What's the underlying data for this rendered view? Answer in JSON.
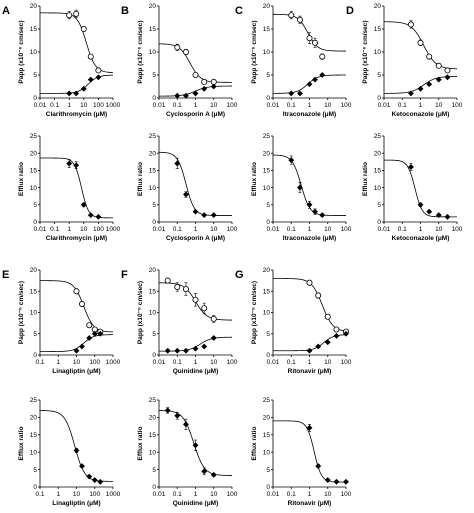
{
  "chart_data": [
    {
      "type": "scatter",
      "panel_label": "A",
      "drug": "Clarithromycin",
      "xlabel": "Clarithromycin (μM)",
      "ylabel": "Papp (x10⁻⁶ cm/sec)",
      "xscale": "log",
      "xlim": [
        0.01,
        1000
      ],
      "ylim": [
        0,
        20
      ],
      "x_ticks": [
        "0.01",
        "0.1",
        "1",
        "10",
        "100",
        "1000"
      ],
      "y_ticks": [
        "0",
        "5",
        "10",
        "15",
        "20"
      ],
      "series": [
        {
          "marker": "open",
          "x": [
            1,
            3,
            10,
            30,
            100
          ],
          "y": [
            18,
            18.3,
            15,
            9,
            6
          ],
          "err": [
            0.8,
            0.8,
            0.5,
            0.5,
            0.4
          ]
        },
        {
          "marker": "filled",
          "x": [
            1,
            3,
            10,
            30,
            100
          ],
          "y": [
            1,
            1,
            2,
            4,
            4.5
          ],
          "err": [
            0,
            0,
            0,
            0,
            0
          ]
        }
      ],
      "fits": [
        {
          "top": 18.5,
          "bottom": 5.5,
          "ic50": 15,
          "hill": 1.4
        },
        {
          "top": 1,
          "bottom": 5,
          "ic50": 20,
          "hill": 1.3
        }
      ]
    },
    {
      "type": "scatter",
      "panel_label": "B",
      "drug": "Cyclosporin A",
      "xlabel": "Cyclosporin A (μM)",
      "ylabel": "Papp (x10⁻⁶ cm/sec)",
      "xscale": "log",
      "xlim": [
        0.01,
        100
      ],
      "ylim": [
        0,
        20
      ],
      "x_ticks": [
        "0.01",
        "0.1",
        "1",
        "10",
        "100"
      ],
      "y_ticks": [
        "0",
        "5",
        "10",
        "15",
        "20"
      ],
      "series": [
        {
          "marker": "open",
          "x": [
            0.1,
            0.3,
            1,
            3,
            10
          ],
          "y": [
            11,
            10,
            5,
            3.5,
            3.5
          ],
          "err": [
            0.7,
            0.6,
            0.4,
            0.3,
            0.3
          ]
        },
        {
          "marker": "filled",
          "x": [
            0.1,
            0.3,
            1,
            3,
            10
          ],
          "y": [
            0.5,
            0.5,
            1,
            2,
            2.5
          ],
          "err": [
            0,
            0,
            0,
            0,
            0
          ]
        }
      ],
      "fits": [
        {
          "top": 11.8,
          "bottom": 3.4,
          "ic50": 0.5,
          "hill": 1.5
        },
        {
          "top": 0.4,
          "bottom": 2.6,
          "ic50": 1,
          "hill": 1.3
        }
      ]
    },
    {
      "type": "scatter",
      "panel_label": "C",
      "drug": "Itraconazole",
      "xlabel": "Itraconazole (μM)",
      "ylabel": "Papp (x10⁻⁶ cm/sec)",
      "xscale": "log",
      "xlim": [
        0.01,
        100
      ],
      "ylim": [
        0,
        20
      ],
      "x_ticks": [
        "0.01",
        "0.1",
        "1",
        "10",
        "100"
      ],
      "y_ticks": [
        "0",
        "5",
        "10",
        "15",
        "20"
      ],
      "series": [
        {
          "marker": "open",
          "x": [
            0.1,
            0.3,
            1,
            2,
            5
          ],
          "y": [
            18,
            17,
            13,
            12,
            9
          ],
          "err": [
            0.8,
            0.8,
            1.2,
            1.0,
            0.6
          ]
        },
        {
          "marker": "filled",
          "x": [
            0.1,
            0.3,
            1,
            2,
            5
          ],
          "y": [
            1,
            1,
            3,
            4,
            5
          ],
          "err": [
            0,
            0,
            0,
            0,
            0
          ]
        }
      ],
      "fits": [
        {
          "top": 18.2,
          "bottom": 10.2,
          "ic50": 0.8,
          "hill": 1.6
        },
        {
          "top": 1,
          "bottom": 5,
          "ic50": 0.8,
          "hill": 1.5
        }
      ]
    },
    {
      "type": "scatter",
      "panel_label": "D",
      "drug": "Ketoconazole",
      "xlabel": "Ketoconazole (μM)",
      "ylabel": "Papp (x10⁻⁶ cm/sec)",
      "xscale": "log",
      "xlim": [
        0.01,
        100
      ],
      "ylim": [
        0,
        20
      ],
      "x_ticks": [
        "0.01",
        "0.1",
        "1",
        "10",
        "100"
      ],
      "y_ticks": [
        "0",
        "5",
        "10",
        "15",
        "20"
      ],
      "series": [
        {
          "marker": "open",
          "x": [
            0.3,
            1,
            3,
            10,
            30
          ],
          "y": [
            16,
            12,
            9,
            7,
            6
          ],
          "err": [
            0.8,
            0.6,
            0.5,
            0.4,
            0.4
          ]
        },
        {
          "marker": "filled",
          "x": [
            0.3,
            1,
            3,
            10,
            30
          ],
          "y": [
            1,
            2,
            3,
            4,
            4.5
          ],
          "err": [
            0,
            0,
            0,
            0,
            0
          ]
        }
      ],
      "fits": [
        {
          "top": 16.6,
          "bottom": 6.3,
          "ic50": 1.5,
          "hill": 1.3
        },
        {
          "top": 1,
          "bottom": 4.7,
          "ic50": 1.5,
          "hill": 1.3
        }
      ]
    },
    {
      "type": "scatter",
      "panel_label": "",
      "drug": "Clarithromycin",
      "xlabel": "Clarithromycin (μM)",
      "ylabel": "Efflux ratio",
      "xscale": "log",
      "xlim": [
        0.01,
        1000
      ],
      "ylim": [
        0,
        25
      ],
      "x_ticks": [
        "0.01",
        "0.1",
        "1",
        "10",
        "100",
        "1000"
      ],
      "y_ticks": [
        "0",
        "5",
        "10",
        "15",
        "20",
        "25"
      ],
      "series": [
        {
          "marker": "filled",
          "x": [
            1,
            3,
            10,
            30,
            100
          ],
          "y": [
            17,
            16.5,
            5,
            2,
            1.5
          ],
          "err": [
            1.2,
            1.0,
            0.5,
            0.3,
            0.2
          ]
        }
      ],
      "fits": [
        {
          "top": 18.6,
          "bottom": 1.2,
          "ic50": 7,
          "hill": 1.8
        }
      ]
    },
    {
      "type": "scatter",
      "panel_label": "",
      "drug": "Cyclosporin A",
      "xlabel": "Cyclosporin A (μM)",
      "ylabel": "Efflux ratio",
      "xscale": "log",
      "xlim": [
        0.01,
        100
      ],
      "ylim": [
        0,
        25
      ],
      "x_ticks": [
        "0.01",
        "0.1",
        "1",
        "10",
        "100"
      ],
      "y_ticks": [
        "0",
        "5",
        "10",
        "15",
        "20",
        "25"
      ],
      "series": [
        {
          "marker": "filled",
          "x": [
            0.1,
            0.3,
            1,
            3,
            10
          ],
          "y": [
            17,
            8,
            3,
            2,
            2
          ],
          "err": [
            1.5,
            0.8,
            0.3,
            0.2,
            0.2
          ]
        }
      ],
      "fits": [
        {
          "top": 20.3,
          "bottom": 1.9,
          "ic50": 0.3,
          "hill": 1.9
        }
      ]
    },
    {
      "type": "scatter",
      "panel_label": "",
      "drug": "Itraconazole",
      "xlabel": "Itraconazole (μM)",
      "ylabel": "Efflux ratio",
      "xscale": "log",
      "xlim": [
        0.01,
        100
      ],
      "ylim": [
        0,
        25
      ],
      "x_ticks": [
        "0.01",
        "0.1",
        "1",
        "10",
        "100"
      ],
      "y_ticks": [
        "0",
        "5",
        "10",
        "15",
        "20",
        "25"
      ],
      "series": [
        {
          "marker": "filled",
          "x": [
            0.1,
            0.3,
            1,
            2,
            5
          ],
          "y": [
            18,
            10,
            5,
            3,
            2
          ],
          "err": [
            1.2,
            1.5,
            1.0,
            0.8,
            0.4
          ]
        }
      ],
      "fits": [
        {
          "top": 19.5,
          "bottom": 1.9,
          "ic50": 0.35,
          "hill": 1.8
        }
      ]
    },
    {
      "type": "scatter",
      "panel_label": "",
      "drug": "Ketoconazole",
      "xlabel": "Ketoconazole (μM)",
      "ylabel": "Efflux ratio",
      "xscale": "log",
      "xlim": [
        0.01,
        100
      ],
      "ylim": [
        0,
        25
      ],
      "x_ticks": [
        "0.01",
        "0.1",
        "1",
        "10",
        "100"
      ],
      "y_ticks": [
        "0",
        "5",
        "10",
        "15",
        "20",
        "25"
      ],
      "series": [
        {
          "marker": "filled",
          "x": [
            0.3,
            1,
            3,
            10,
            30
          ],
          "y": [
            16,
            5,
            3,
            2,
            1.5
          ],
          "err": [
            1.0,
            0.5,
            0.3,
            0.2,
            0.2
          ]
        }
      ],
      "fits": [
        {
          "top": 18,
          "bottom": 1.5,
          "ic50": 0.5,
          "hill": 2.2
        }
      ]
    },
    {
      "type": "scatter",
      "panel_label": "E",
      "drug": "Linagliptin",
      "xlabel": "Linagliptin (μM)",
      "ylabel": "Papp (x10⁻⁶ cm/sec)",
      "xscale": "log",
      "xlim": [
        0.1,
        1000
      ],
      "ylim": [
        0,
        20
      ],
      "x_ticks": [
        "0.1",
        "1",
        "10",
        "100",
        "1000"
      ],
      "y_ticks": [
        "0",
        "5",
        "10",
        "15",
        "20"
      ],
      "series": [
        {
          "marker": "open",
          "x": [
            10,
            20,
            50,
            100,
            200
          ],
          "y": [
            15,
            12,
            7,
            6,
            5.5
          ],
          "err": [
            0.6,
            0.6,
            0.5,
            0.4,
            0.4
          ]
        },
        {
          "marker": "filled",
          "x": [
            10,
            20,
            50,
            100,
            200
          ],
          "y": [
            1,
            2,
            4,
            5,
            5
          ],
          "err": [
            0,
            0,
            0,
            0,
            0
          ]
        }
      ],
      "fits": [
        {
          "top": 17.5,
          "bottom": 5.4,
          "ic50": 25,
          "hill": 1.6
        },
        {
          "top": 0.8,
          "bottom": 4.8,
          "ic50": 25,
          "hill": 1.6
        }
      ]
    },
    {
      "type": "scatter",
      "panel_label": "F",
      "drug": "Quinidine",
      "xlabel": "Quinidine (μM)",
      "ylabel": "Papp (x10⁻⁶ cm/sec)",
      "xscale": "log",
      "xlim": [
        0.01,
        100
      ],
      "ylim": [
        0,
        20
      ],
      "x_ticks": [
        "0.01",
        "0.1",
        "1",
        "10",
        "100"
      ],
      "y_ticks": [
        "0",
        "5",
        "10",
        "15",
        "20"
      ],
      "series": [
        {
          "marker": "open",
          "x": [
            0.03,
            0.1,
            0.3,
            1,
            3,
            10
          ],
          "y": [
            17.5,
            16,
            15.5,
            13,
            11,
            8.5
          ],
          "err": [
            0.6,
            1.0,
            1.5,
            1.5,
            1.2,
            0.8
          ]
        },
        {
          "marker": "filled",
          "x": [
            0.03,
            0.1,
            0.3,
            1,
            3,
            10
          ],
          "y": [
            1,
            1,
            1,
            1.5,
            2,
            4
          ],
          "err": [
            0,
            0,
            0,
            0,
            0,
            0
          ]
        }
      ],
      "fits": [
        {
          "top": 17,
          "bottom": 8.2,
          "ic50": 1,
          "hill": 1.4
        },
        {
          "top": 0.9,
          "bottom": 4.2,
          "ic50": 1.8,
          "hill": 1.4
        }
      ]
    },
    {
      "type": "scatter",
      "panel_label": "G",
      "drug": "Ritonavir",
      "xlabel": "Ritonavir (μM)",
      "ylabel": "Papp (x10⁻⁶ cm/sec)",
      "xscale": "log",
      "xlim": [
        0.01,
        100
      ],
      "ylim": [
        0,
        20
      ],
      "x_ticks": [
        "0.01",
        "0.1",
        "1",
        "10",
        "100"
      ],
      "y_ticks": [
        "0",
        "5",
        "10",
        "15",
        "20"
      ],
      "series": [
        {
          "marker": "open",
          "x": [
            1,
            3,
            10,
            30,
            100
          ],
          "y": [
            17,
            14,
            9,
            6,
            5.5
          ],
          "err": [
            0.6,
            0.6,
            0.5,
            0.4,
            0.4
          ]
        },
        {
          "marker": "filled",
          "x": [
            1,
            3,
            10,
            30,
            100
          ],
          "y": [
            1,
            2,
            3,
            4.5,
            5
          ],
          "err": [
            0,
            0,
            0,
            0,
            0
          ]
        }
      ],
      "fits": [
        {
          "top": 18,
          "bottom": 5.5,
          "ic50": 5,
          "hill": 1.5
        },
        {
          "top": 1,
          "bottom": 4.8,
          "ic50": 6,
          "hill": 1.6
        }
      ]
    },
    {
      "type": "scatter",
      "panel_label": "",
      "drug": "Linagliptin",
      "xlabel": "Linagliptin (μM)",
      "ylabel": "Efflux ratio",
      "xscale": "log",
      "xlim": [
        0.1,
        1000
      ],
      "ylim": [
        0,
        25
      ],
      "x_ticks": [
        "0.1",
        "1",
        "10",
        "100",
        "1000"
      ],
      "y_ticks": [
        "0",
        "5",
        "10",
        "15",
        "20",
        "25"
      ],
      "series": [
        {
          "marker": "filled",
          "x": [
            10,
            20,
            50,
            100,
            200
          ],
          "y": [
            10.5,
            6,
            3,
            2,
            1.5
          ],
          "err": [
            0.6,
            0.4,
            0.3,
            0.2,
            0.2
          ]
        }
      ],
      "fits": [
        {
          "top": 22,
          "bottom": 1.6,
          "ic50": 8,
          "hill": 1.6
        }
      ]
    },
    {
      "type": "scatter",
      "panel_label": "",
      "drug": "Quinidine",
      "xlabel": "Quinidine (μM)",
      "ylabel": "Efflux ratio",
      "xscale": "log",
      "xlim": [
        0.01,
        100
      ],
      "ylim": [
        0,
        25
      ],
      "x_ticks": [
        "0.01",
        "0.1",
        "1",
        "10",
        "100"
      ],
      "y_ticks": [
        "0",
        "5",
        "10",
        "15",
        "20",
        "25"
      ],
      "series": [
        {
          "marker": "filled",
          "x": [
            0.03,
            0.1,
            0.3,
            1,
            3,
            10
          ],
          "y": [
            22,
            20.5,
            18,
            12,
            4.5,
            3.5
          ],
          "err": [
            0.8,
            1.0,
            1.5,
            1.5,
            1.0,
            0.4
          ]
        }
      ],
      "fits": [
        {
          "top": 22,
          "bottom": 3.3,
          "ic50": 0.8,
          "hill": 1.5
        }
      ]
    },
    {
      "type": "scatter",
      "panel_label": "",
      "drug": "Ritonavir",
      "xlabel": "Ritonavir (μM)",
      "ylabel": "Efflux ratio",
      "xscale": "log",
      "xlim": [
        0.01,
        100
      ],
      "ylim": [
        0,
        25
      ],
      "x_ticks": [
        "0.01",
        "0.1",
        "1",
        "10",
        "100"
      ],
      "y_ticks": [
        "0",
        "5",
        "10",
        "15",
        "20",
        "25"
      ],
      "series": [
        {
          "marker": "filled",
          "x": [
            1,
            3,
            10,
            30,
            100
          ],
          "y": [
            17,
            6,
            2,
            1.5,
            1.5
          ],
          "err": [
            1.0,
            0.5,
            0.3,
            0.2,
            0.2
          ]
        }
      ],
      "fits": [
        {
          "top": 19,
          "bottom": 1.4,
          "ic50": 1.8,
          "hill": 2.2
        }
      ]
    }
  ]
}
